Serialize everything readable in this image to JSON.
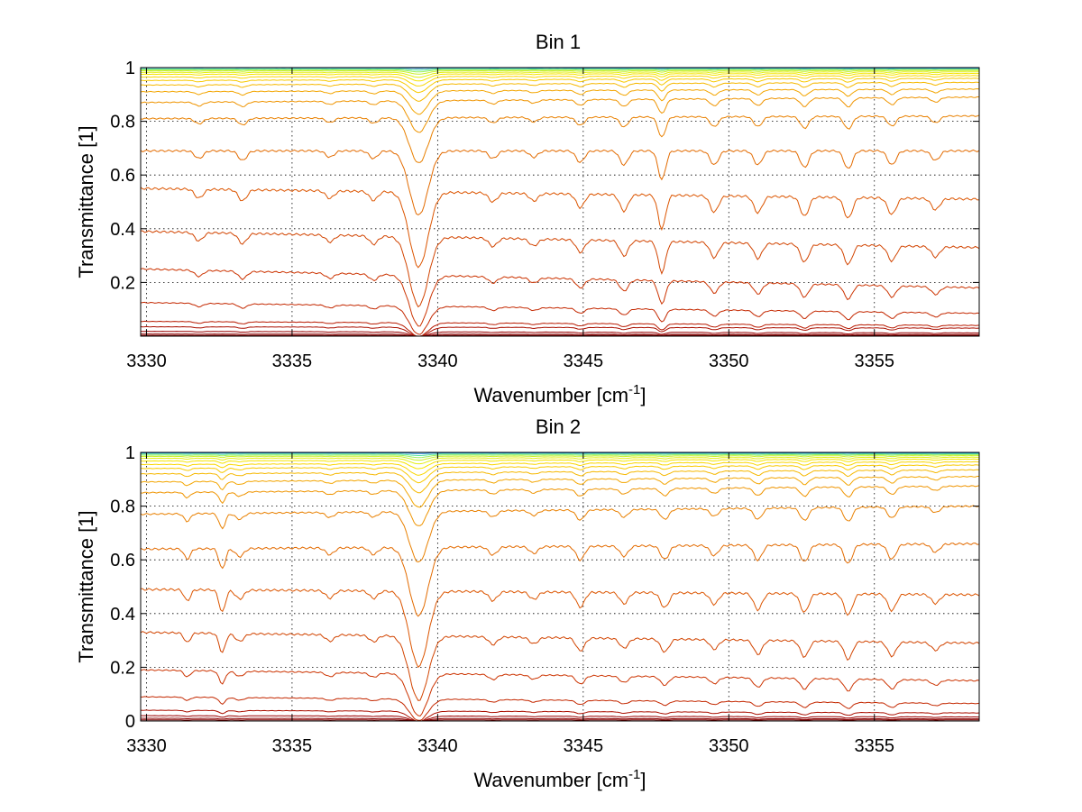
{
  "chart_data": [
    {
      "type": "line",
      "title": "Bin 1",
      "xlabel": {
        "text": "Wavenumber [cm",
        "sup": "-1",
        "tail": "]"
      },
      "ylabel": "Transmittance [1]",
      "xlim": [
        3329.8,
        3358.6
      ],
      "ylim": [
        0,
        1.0
      ],
      "xticks": [
        3330,
        3335,
        3340,
        3345,
        3350,
        3355
      ],
      "yticks": [
        0.2,
        0.4,
        0.6,
        0.8,
        1
      ],
      "xticklabels": [
        "3330",
        "3335",
        "3340",
        "3345",
        "3350",
        "3355"
      ],
      "yticklabels": [
        "0.2",
        "0.4",
        "0.6",
        "0.8",
        "1"
      ],
      "grid": true,
      "colormap": "jet",
      "series": [
        {
          "color": "#800000",
          "values_start": 0.003,
          "values_end": 0.003
        },
        {
          "color": "#8a0000",
          "values_start": 0.008,
          "values_end": 0.006
        },
        {
          "color": "#990000",
          "values_start": 0.018,
          "values_end": 0.012
        },
        {
          "color": "#aa0f00",
          "values_start": 0.035,
          "values_end": 0.03
        },
        {
          "color": "#b81a00",
          "values_start": 0.055,
          "values_end": 0.04
        },
        {
          "color": "#c42800",
          "values_start": 0.125,
          "values_end": 0.085
        },
        {
          "color": "#cc3300",
          "values_start": 0.25,
          "values_end": 0.18
        },
        {
          "color": "#d24400",
          "values_start": 0.39,
          "values_end": 0.33
        },
        {
          "color": "#dc5500",
          "values_start": 0.55,
          "values_end": 0.51
        },
        {
          "color": "#e36b00",
          "values_start": 0.69,
          "values_end": 0.69
        },
        {
          "color": "#e98000",
          "values_start": 0.81,
          "values_end": 0.82
        },
        {
          "color": "#ef9400",
          "values_start": 0.87,
          "values_end": 0.89
        },
        {
          "color": "#f3a500",
          "values_start": 0.91,
          "values_end": 0.92
        },
        {
          "color": "#f6b800",
          "values_start": 0.935,
          "values_end": 0.945
        },
        {
          "color": "#f8c900",
          "values_start": 0.952,
          "values_end": 0.96
        },
        {
          "color": "#fad600",
          "values_start": 0.965,
          "values_end": 0.97
        },
        {
          "color": "#f6e400",
          "values_start": 0.975,
          "values_end": 0.978
        },
        {
          "color": "#e3ee10",
          "values_start": 0.982,
          "values_end": 0.984
        },
        {
          "color": "#c8f02a",
          "values_start": 0.988,
          "values_end": 0.989
        },
        {
          "color": "#9ef05a",
          "values_start": 0.992,
          "values_end": 0.993
        },
        {
          "color": "#5be6a0",
          "values_start": 0.995,
          "values_end": 0.996
        },
        {
          "color": "#1a8ee0",
          "values_start": 0.999,
          "values_end": 0.998
        }
      ],
      "absorption_lines": [
        {
          "x": 3339.35,
          "depth": 1.0,
          "width": 0.45
        },
        {
          "x": 3347.7,
          "depth": 0.45,
          "width": 0.18
        },
        {
          "x": 3331.8,
          "depth": 0.12,
          "width": 0.2
        },
        {
          "x": 3333.3,
          "depth": 0.15,
          "width": 0.2
        },
        {
          "x": 3336.3,
          "depth": 0.1,
          "width": 0.2
        },
        {
          "x": 3337.8,
          "depth": 0.12,
          "width": 0.2
        },
        {
          "x": 3341.9,
          "depth": 0.12,
          "width": 0.2
        },
        {
          "x": 3343.3,
          "depth": 0.1,
          "width": 0.2
        },
        {
          "x": 3344.9,
          "depth": 0.18,
          "width": 0.2
        },
        {
          "x": 3346.4,
          "depth": 0.22,
          "width": 0.2
        },
        {
          "x": 3349.5,
          "depth": 0.22,
          "width": 0.2
        },
        {
          "x": 3351.0,
          "depth": 0.22,
          "width": 0.2
        },
        {
          "x": 3352.6,
          "depth": 0.26,
          "width": 0.2
        },
        {
          "x": 3354.1,
          "depth": 0.28,
          "width": 0.2
        },
        {
          "x": 3355.6,
          "depth": 0.22,
          "width": 0.2
        },
        {
          "x": 3357.1,
          "depth": 0.15,
          "width": 0.2
        }
      ]
    },
    {
      "type": "line",
      "title": "Bin 2",
      "xlabel": {
        "text": "Wavenumber [cm",
        "sup": "-1",
        "tail": "]"
      },
      "ylabel": "Transmittance [1]",
      "xlim": [
        3329.8,
        3358.6
      ],
      "ylim": [
        0,
        1.0
      ],
      "xticks": [
        3330,
        3335,
        3340,
        3345,
        3350,
        3355
      ],
      "yticks": [
        0,
        0.2,
        0.4,
        0.6,
        0.8,
        1
      ],
      "xticklabels": [
        "3330",
        "3335",
        "3340",
        "3345",
        "3350",
        "3355"
      ],
      "yticklabels": [
        "0",
        "0.2",
        "0.4",
        "0.6",
        "0.8",
        "1"
      ],
      "grid": true,
      "colormap": "jet",
      "series": [
        {
          "color": "#800000",
          "values_start": 0.004,
          "values_end": 0.004
        },
        {
          "color": "#8a0000",
          "values_start": 0.01,
          "values_end": 0.008
        },
        {
          "color": "#990000",
          "values_start": 0.02,
          "values_end": 0.015
        },
        {
          "color": "#aa0f00",
          "values_start": 0.04,
          "values_end": 0.03
        },
        {
          "color": "#c42800",
          "values_start": 0.09,
          "values_end": 0.065
        },
        {
          "color": "#cc3300",
          "values_start": 0.19,
          "values_end": 0.15
        },
        {
          "color": "#d24400",
          "values_start": 0.33,
          "values_end": 0.29
        },
        {
          "color": "#dc5500",
          "values_start": 0.49,
          "values_end": 0.47
        },
        {
          "color": "#e36b00",
          "values_start": 0.64,
          "values_end": 0.66
        },
        {
          "color": "#e98000",
          "values_start": 0.77,
          "values_end": 0.8
        },
        {
          "color": "#ef9400",
          "values_start": 0.85,
          "values_end": 0.875
        },
        {
          "color": "#f3a500",
          "values_start": 0.89,
          "values_end": 0.91
        },
        {
          "color": "#f6b800",
          "values_start": 0.92,
          "values_end": 0.935
        },
        {
          "color": "#f8c900",
          "values_start": 0.94,
          "values_end": 0.953
        },
        {
          "color": "#fad600",
          "values_start": 0.955,
          "values_end": 0.965
        },
        {
          "color": "#f6e400",
          "values_start": 0.968,
          "values_end": 0.975
        },
        {
          "color": "#e3ee10",
          "values_start": 0.978,
          "values_end": 0.982
        },
        {
          "color": "#c8f02a",
          "values_start": 0.985,
          "values_end": 0.988
        },
        {
          "color": "#9ef05a",
          "values_start": 0.99,
          "values_end": 0.992
        },
        {
          "color": "#5be6a0",
          "values_start": 0.994,
          "values_end": 0.995
        },
        {
          "color": "#1a8ee0",
          "values_start": 0.998,
          "values_end": 0.998
        }
      ],
      "absorption_lines": [
        {
          "x": 3339.35,
          "depth": 1.0,
          "width": 0.45
        },
        {
          "x": 3331.4,
          "depth": 0.15,
          "width": 0.15
        },
        {
          "x": 3332.6,
          "depth": 0.3,
          "width": 0.15
        },
        {
          "x": 3333.2,
          "depth": 0.12,
          "width": 0.2
        },
        {
          "x": 3336.3,
          "depth": 0.1,
          "width": 0.2
        },
        {
          "x": 3337.8,
          "depth": 0.1,
          "width": 0.2
        },
        {
          "x": 3341.9,
          "depth": 0.12,
          "width": 0.2
        },
        {
          "x": 3343.3,
          "depth": 0.1,
          "width": 0.2
        },
        {
          "x": 3344.9,
          "depth": 0.2,
          "width": 0.2
        },
        {
          "x": 3346.4,
          "depth": 0.15,
          "width": 0.2
        },
        {
          "x": 3347.8,
          "depth": 0.2,
          "width": 0.2
        },
        {
          "x": 3349.5,
          "depth": 0.15,
          "width": 0.2
        },
        {
          "x": 3351.0,
          "depth": 0.22,
          "width": 0.2
        },
        {
          "x": 3352.6,
          "depth": 0.25,
          "width": 0.2
        },
        {
          "x": 3354.1,
          "depth": 0.28,
          "width": 0.2
        },
        {
          "x": 3355.6,
          "depth": 0.22,
          "width": 0.2
        },
        {
          "x": 3357.1,
          "depth": 0.12,
          "width": 0.2
        }
      ]
    }
  ]
}
